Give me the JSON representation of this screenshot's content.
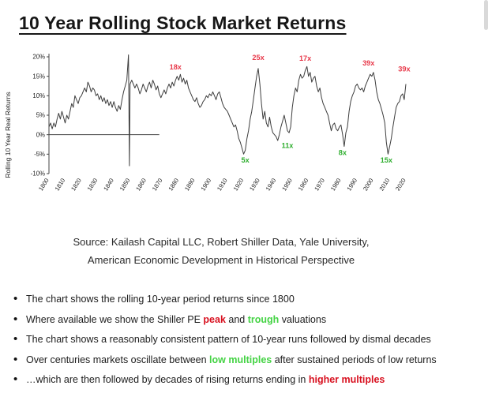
{
  "page": {
    "title": "10 Year Rolling Stock Market Returns"
  },
  "colors": {
    "line": "#3d3d3d",
    "axis": "#444444",
    "chart_red": "#e8394a",
    "chart_green": "#2fae2f",
    "bullet_red": "#d8101f",
    "bullet_green": "#44d344"
  },
  "chart_data": {
    "type": "line",
    "title": "",
    "xlabel": "",
    "ylabel": "Rolling 10 Year Real Returns",
    "xlim": [
      1800,
      2020
    ],
    "ylim": [
      -10,
      20
    ],
    "grid": false,
    "legend": "none",
    "zero_line_end_year": 1868,
    "y_ticks": [
      20,
      15,
      10,
      5,
      0,
      -5,
      -10
    ],
    "y_tick_labels": [
      "20%",
      "15%",
      "10%",
      "5%",
      "0%",
      "-5%",
      "-10%"
    ],
    "x_ticks": [
      1800,
      1810,
      1820,
      1830,
      1840,
      1850,
      1860,
      1870,
      1880,
      1890,
      1900,
      1910,
      1920,
      1930,
      1940,
      1950,
      1960,
      1970,
      1980,
      1990,
      2000,
      2010,
      2020
    ],
    "series": [
      {
        "name": "rolling-10-year-real-returns",
        "points": [
          [
            1800,
            2
          ],
          [
            1801,
            3
          ],
          [
            1802,
            1.5
          ],
          [
            1803,
            3
          ],
          [
            1804,
            2
          ],
          [
            1805,
            4
          ],
          [
            1806,
            5.5
          ],
          [
            1807,
            4
          ],
          [
            1808,
            6
          ],
          [
            1809,
            4.5
          ],
          [
            1810,
            3
          ],
          [
            1811,
            5
          ],
          [
            1812,
            4
          ],
          [
            1813,
            6
          ],
          [
            1814,
            8
          ],
          [
            1815,
            7
          ],
          [
            1816,
            10
          ],
          [
            1817,
            9
          ],
          [
            1818,
            8
          ],
          [
            1819,
            9.5
          ],
          [
            1820,
            10
          ],
          [
            1821,
            11
          ],
          [
            1822,
            12
          ],
          [
            1823,
            11
          ],
          [
            1824,
            13.5
          ],
          [
            1825,
            12.5
          ],
          [
            1826,
            11
          ],
          [
            1827,
            12
          ],
          [
            1828,
            11.5
          ],
          [
            1829,
            10
          ],
          [
            1830,
            10.5
          ],
          [
            1831,
            9
          ],
          [
            1832,
            10
          ],
          [
            1833,
            8.5
          ],
          [
            1834,
            9.5
          ],
          [
            1835,
            8
          ],
          [
            1836,
            9
          ],
          [
            1837,
            7.5
          ],
          [
            1838,
            8.5
          ],
          [
            1839,
            7
          ],
          [
            1840,
            8.5
          ],
          [
            1841,
            7
          ],
          [
            1842,
            6
          ],
          [
            1843,
            7.5
          ],
          [
            1844,
            6.5
          ],
          [
            1845,
            9
          ],
          [
            1846,
            11
          ],
          [
            1847,
            12.5
          ],
          [
            1848,
            14
          ],
          [
            1849,
            20.5
          ],
          [
            1849.6,
            -8
          ],
          [
            1850,
            13
          ],
          [
            1851,
            14
          ],
          [
            1852,
            13
          ],
          [
            1853,
            12
          ],
          [
            1854,
            13
          ],
          [
            1855,
            12
          ],
          [
            1856,
            10.5
          ],
          [
            1857,
            11.5
          ],
          [
            1858,
            13
          ],
          [
            1859,
            12
          ],
          [
            1860,
            11
          ],
          [
            1861,
            12.5
          ],
          [
            1862,
            13.5
          ],
          [
            1863,
            12
          ],
          [
            1864,
            14
          ],
          [
            1865,
            13
          ],
          [
            1866,
            11.5
          ],
          [
            1867,
            12.5
          ],
          [
            1868,
            10.5
          ],
          [
            1869,
            9.5
          ],
          [
            1870,
            10.5
          ],
          [
            1871,
            11.5
          ],
          [
            1872,
            10.5
          ],
          [
            1873,
            12
          ],
          [
            1874,
            13
          ],
          [
            1875,
            12
          ],
          [
            1876,
            13.5
          ],
          [
            1877,
            12.5
          ],
          [
            1878,
            14
          ],
          [
            1879,
            15
          ],
          [
            1880,
            14
          ],
          [
            1881,
            15.5
          ],
          [
            1882,
            13.5
          ],
          [
            1883,
            14.5
          ],
          [
            1884,
            13
          ],
          [
            1885,
            14
          ],
          [
            1886,
            12
          ],
          [
            1887,
            11
          ],
          [
            1888,
            10
          ],
          [
            1889,
            9
          ],
          [
            1890,
            8.5
          ],
          [
            1891,
            9.5
          ],
          [
            1892,
            8
          ],
          [
            1893,
            7
          ],
          [
            1894,
            7.5
          ],
          [
            1895,
            8.5
          ],
          [
            1896,
            9
          ],
          [
            1897,
            10
          ],
          [
            1898,
            9.5
          ],
          [
            1899,
            10.5
          ],
          [
            1900,
            10
          ],
          [
            1901,
            11
          ],
          [
            1902,
            10
          ],
          [
            1903,
            9
          ],
          [
            1904,
            10.5
          ],
          [
            1905,
            11
          ],
          [
            1906,
            9.5
          ],
          [
            1907,
            8
          ],
          [
            1908,
            7
          ],
          [
            1909,
            6.5
          ],
          [
            1910,
            6
          ],
          [
            1911,
            5
          ],
          [
            1912,
            4
          ],
          [
            1913,
            3
          ],
          [
            1914,
            2
          ],
          [
            1915,
            2.5
          ],
          [
            1916,
            1
          ],
          [
            1917,
            -1
          ],
          [
            1918,
            -2
          ],
          [
            1919,
            -3.5
          ],
          [
            1920,
            -5
          ],
          [
            1921,
            -4
          ],
          [
            1922,
            -1
          ],
          [
            1923,
            1
          ],
          [
            1924,
            4
          ],
          [
            1925,
            6
          ],
          [
            1926,
            9
          ],
          [
            1927,
            12
          ],
          [
            1928,
            15
          ],
          [
            1929,
            17
          ],
          [
            1930,
            13
          ],
          [
            1931,
            8
          ],
          [
            1932,
            4
          ],
          [
            1933,
            6
          ],
          [
            1934,
            3
          ],
          [
            1935,
            2
          ],
          [
            1936,
            4.5
          ],
          [
            1937,
            2
          ],
          [
            1938,
            0.5
          ],
          [
            1939,
            0
          ],
          [
            1940,
            -0.5
          ],
          [
            1941,
            -1.5
          ],
          [
            1942,
            0
          ],
          [
            1943,
            2
          ],
          [
            1944,
            3.5
          ],
          [
            1945,
            5
          ],
          [
            1946,
            3
          ],
          [
            1947,
            1
          ],
          [
            1948,
            0.5
          ],
          [
            1949,
            2
          ],
          [
            1950,
            7
          ],
          [
            1951,
            10
          ],
          [
            1952,
            12
          ],
          [
            1953,
            11
          ],
          [
            1954,
            14
          ],
          [
            1955,
            15.5
          ],
          [
            1956,
            14.5
          ],
          [
            1957,
            15
          ],
          [
            1958,
            16.5
          ],
          [
            1959,
            17.5
          ],
          [
            1960,
            15
          ],
          [
            1961,
            16
          ],
          [
            1962,
            13.5
          ],
          [
            1963,
            14.5
          ],
          [
            1964,
            15
          ],
          [
            1965,
            12.5
          ],
          [
            1966,
            11
          ],
          [
            1967,
            12
          ],
          [
            1968,
            9.5
          ],
          [
            1969,
            8
          ],
          [
            1970,
            7
          ],
          [
            1971,
            6
          ],
          [
            1972,
            5
          ],
          [
            1973,
            3
          ],
          [
            1974,
            1
          ],
          [
            1975,
            2.5
          ],
          [
            1976,
            3
          ],
          [
            1977,
            1.5
          ],
          [
            1978,
            1
          ],
          [
            1979,
            2
          ],
          [
            1980,
            2.5
          ],
          [
            1981,
            0
          ],
          [
            1982,
            -3
          ],
          [
            1983,
            0.5
          ],
          [
            1984,
            2
          ],
          [
            1985,
            6
          ],
          [
            1986,
            8.5
          ],
          [
            1987,
            10
          ],
          [
            1988,
            11
          ],
          [
            1989,
            12.5
          ],
          [
            1990,
            13
          ],
          [
            1991,
            12
          ],
          [
            1992,
            11.5
          ],
          [
            1993,
            12
          ],
          [
            1994,
            11
          ],
          [
            1995,
            12.5
          ],
          [
            1996,
            13.5
          ],
          [
            1997,
            14.5
          ],
          [
            1998,
            15.5
          ],
          [
            1999,
            15
          ],
          [
            2000,
            16
          ],
          [
            2001,
            14
          ],
          [
            2002,
            11
          ],
          [
            2003,
            9
          ],
          [
            2004,
            8
          ],
          [
            2005,
            6.5
          ],
          [
            2006,
            5
          ],
          [
            2007,
            3
          ],
          [
            2008,
            -2
          ],
          [
            2009,
            -5
          ],
          [
            2010,
            -3
          ],
          [
            2011,
            -1
          ],
          [
            2012,
            2
          ],
          [
            2013,
            4.5
          ],
          [
            2014,
            7
          ],
          [
            2015,
            8
          ],
          [
            2016,
            8.5
          ],
          [
            2017,
            10
          ],
          [
            2018,
            10.5
          ],
          [
            2019,
            9
          ],
          [
            2020,
            13
          ]
        ]
      }
    ],
    "annotations": [
      {
        "label": "18x",
        "year": 1878,
        "value": 16.8,
        "color": "red"
      },
      {
        "label": "25x",
        "year": 1929,
        "value": 19.2,
        "color": "red"
      },
      {
        "label": "17x",
        "year": 1958,
        "value": 19.0,
        "color": "red"
      },
      {
        "label": "39x",
        "year": 1997,
        "value": 17.8,
        "color": "red"
      },
      {
        "label": "39x",
        "year": 2019,
        "value": 16.2,
        "color": "red"
      },
      {
        "label": "5x",
        "year": 1921,
        "value": -7.2,
        "color": "green"
      },
      {
        "label": "11x",
        "year": 1947,
        "value": -3.4,
        "color": "green"
      },
      {
        "label": "8x",
        "year": 1981,
        "value": -5.2,
        "color": "green"
      },
      {
        "label": "15x",
        "year": 2008,
        "value": -7.2,
        "color": "green"
      }
    ]
  },
  "source": {
    "line1": "Source: Kailash Capital LLC, Robert Shiller Data, Yale University,",
    "line2": "American Economic Development in Historical Perspective"
  },
  "bullets": [
    {
      "segments": [
        {
          "text": "The chart shows the rolling 10-year period returns since 1800"
        }
      ]
    },
    {
      "segments": [
        {
          "text": "Where available we show the Shiller PE "
        },
        {
          "text": "peak",
          "color": "red"
        },
        {
          "text": " and "
        },
        {
          "text": "trough",
          "color": "green"
        },
        {
          "text": " valuations"
        }
      ]
    },
    {
      "segments": [
        {
          "text": "The chart shows a reasonably consistent pattern of 10-year runs followed by dismal decades"
        }
      ]
    },
    {
      "segments": [
        {
          "text": "Over centuries markets oscillate between "
        },
        {
          "text": "low multiples",
          "color": "green"
        },
        {
          "text": " after sustained periods of low returns"
        }
      ]
    },
    {
      "segments": [
        {
          "text": "…which are then followed by decades of rising returns ending in "
        },
        {
          "text": "higher multiples",
          "color": "red"
        }
      ]
    }
  ]
}
